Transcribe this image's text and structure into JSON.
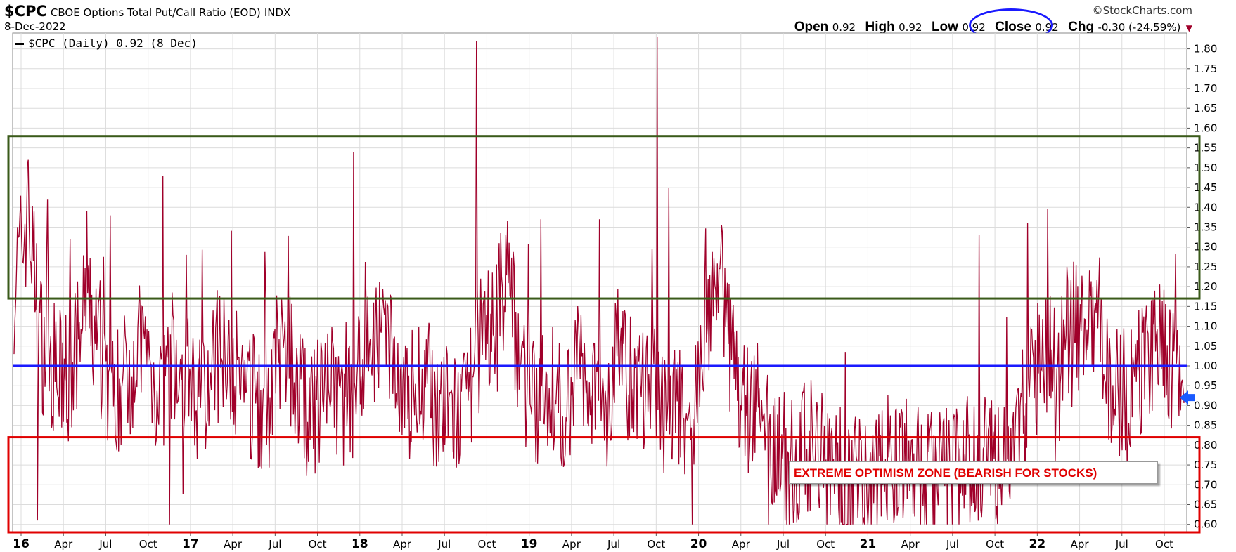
{
  "header": {
    "symbol": "$CPC",
    "name": "CBOE Options Total Put/Call Ratio (EOD)",
    "exchange": "INDX",
    "date": "8-Dec-2022",
    "watermark": "©StockCharts.com"
  },
  "ohlc": {
    "open_label": "Open",
    "open": "0.92",
    "high_label": "High",
    "high": "0.92",
    "low_label": "Low",
    "low": "0.92",
    "close_label": "Close",
    "close": "0.92",
    "chg_label": "Chg",
    "chg": "-0.30 (-24.59%)",
    "chg_arrow": "▼"
  },
  "legend": {
    "text": "$CPC (Daily) 0.92 (8 Dec)"
  },
  "zone_label": "EXTREME OPTIMISM ZONE (BEARISH FOR STOCKS)",
  "colors": {
    "series": "#a0002a",
    "reference_line": "#1a1aff",
    "bearish_box": "#3a5a1a",
    "bullish_box": "#e00000",
    "close_oval": "#1a1aff",
    "last_value_arrow": "#1a5aff"
  },
  "chart_data": {
    "type": "line",
    "ylim": [
      0.58,
      1.84
    ],
    "y_ticks": [
      "1.80",
      "1.75",
      "1.70",
      "1.65",
      "1.60",
      "1.55",
      "1.50",
      "1.45",
      "1.40",
      "1.35",
      "1.30",
      "1.25",
      "1.20",
      "1.15",
      "1.10",
      "1.05",
      "1.00",
      "0.95",
      "0.90",
      "0.85",
      "0.80",
      "0.75",
      "0.70",
      "0.65",
      "0.60"
    ],
    "x_ticks": [
      "16",
      "Apr",
      "Jul",
      "Oct",
      "17",
      "Apr",
      "Jul",
      "Oct",
      "18",
      "Apr",
      "Jul",
      "Oct",
      "19",
      "Apr",
      "Jul",
      "Oct",
      "20",
      "Apr",
      "Jul",
      "Oct",
      "21",
      "Apr",
      "Jul",
      "Oct",
      "22",
      "Apr",
      "Jul",
      "Oct"
    ],
    "x_tick_bold": [
      true,
      false,
      false,
      false,
      true,
      false,
      false,
      false,
      true,
      false,
      false,
      false,
      true,
      false,
      false,
      false,
      true,
      false,
      false,
      false,
      true,
      false,
      false,
      false,
      true,
      false,
      false,
      false
    ],
    "x_range": [
      "2016-01-04",
      "2022-12-08"
    ],
    "reference_line": 1.0,
    "boxes": [
      {
        "from": 1.17,
        "to": 1.58
      },
      {
        "from": 0.58,
        "to": 0.82
      }
    ],
    "last_value": 0.92,
    "series": [
      {
        "name": "$CPC (Daily)",
        "x": [
          "2016-01",
          "2016-02",
          "2016-03",
          "2016-04",
          "2016-05",
          "2016-06",
          "2016-07",
          "2016-08",
          "2016-09",
          "2016-10",
          "2016-11",
          "2016-12",
          "2017-01",
          "2017-02",
          "2017-03",
          "2017-04",
          "2017-05",
          "2017-06",
          "2017-07",
          "2017-08",
          "2017-09",
          "2017-10",
          "2017-11",
          "2017-12",
          "2018-01",
          "2018-02",
          "2018-03",
          "2018-04",
          "2018-05",
          "2018-06",
          "2018-07",
          "2018-08",
          "2018-09",
          "2018-10",
          "2018-11",
          "2018-12",
          "2019-01",
          "2019-02",
          "2019-03",
          "2019-04",
          "2019-05",
          "2019-06",
          "2019-07",
          "2019-08",
          "2019-09",
          "2019-10",
          "2019-11",
          "2019-12",
          "2020-01",
          "2020-02",
          "2020-03",
          "2020-04",
          "2020-05",
          "2020-06",
          "2020-07",
          "2020-08",
          "2020-09",
          "2020-10",
          "2020-11",
          "2020-12",
          "2021-01",
          "2021-02",
          "2021-03",
          "2021-04",
          "2021-05",
          "2021-06",
          "2021-07",
          "2021-08",
          "2021-09",
          "2021-10",
          "2021-11",
          "2021-12",
          "2022-01",
          "2022-02",
          "2022-03",
          "2022-04",
          "2022-05",
          "2022-06",
          "2022-07",
          "2022-08",
          "2022-09",
          "2022-10",
          "2022-11",
          "2022-12"
        ],
        "values": [
          1.2,
          1.38,
          1.05,
          0.98,
          0.95,
          1.15,
          1.05,
          0.92,
          0.98,
          1.05,
          0.95,
          0.96,
          0.98,
          0.9,
          0.97,
          1.08,
          0.95,
          0.92,
          0.88,
          1.05,
          0.98,
          0.85,
          0.95,
          0.92,
          0.9,
          1.1,
          1.05,
          1.0,
          0.92,
          0.98,
          0.9,
          0.88,
          0.87,
          1.05,
          1.1,
          1.25,
          0.98,
          0.9,
          0.95,
          0.88,
          1.0,
          0.96,
          0.9,
          1.05,
          0.92,
          0.95,
          0.9,
          0.88,
          0.85,
          1.1,
          1.25,
          1.0,
          0.9,
          0.88,
          0.8,
          0.75,
          0.78,
          0.82,
          0.74,
          0.72,
          0.72,
          0.75,
          0.78,
          0.74,
          0.75,
          0.72,
          0.74,
          0.72,
          0.78,
          0.76,
          0.74,
          0.82,
          0.95,
          1.02,
          1.0,
          1.12,
          1.08,
          1.05,
          0.95,
          0.92,
          1.0,
          1.05,
          1.02,
          0.92
        ]
      }
    ]
  }
}
